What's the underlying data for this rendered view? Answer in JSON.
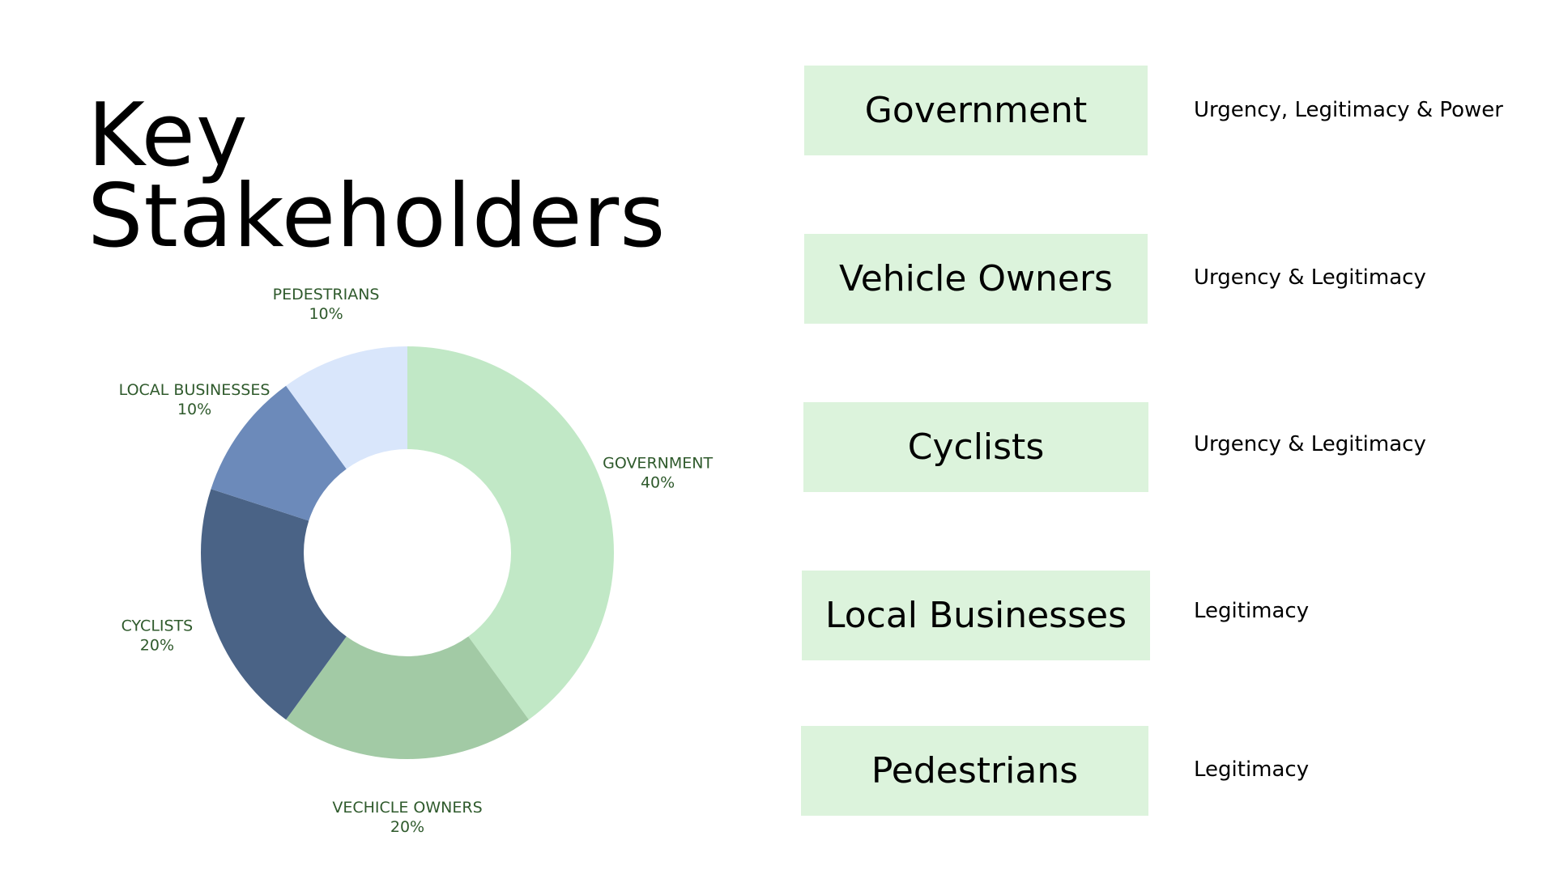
{
  "title": {
    "line1": "Key",
    "line2": "Stakeholders"
  },
  "chart_data": {
    "type": "pie",
    "style": "donut",
    "series": [
      {
        "name": "GOVERNMENT",
        "value": 40,
        "label": "40%",
        "color": "#c1e8c6"
      },
      {
        "name": "VECHICLE OWNERS",
        "value": 20,
        "label": "20%",
        "color": "#a2caa5"
      },
      {
        "name": "CYCLISTS",
        "value": 20,
        "label": "20%",
        "color": "#4a6386"
      },
      {
        "name": "LOCAL BUSINESSES",
        "value": 10,
        "label": "10%",
        "color": "#6c8aba"
      },
      {
        "name": "PEDESTRIANS",
        "value": 10,
        "label": "10%",
        "color": "#d9e6fb"
      }
    ]
  },
  "stakeholders": [
    {
      "name": "Government",
      "attributes": "Urgency, Legitimacy & Power"
    },
    {
      "name": "Vehicle Owners",
      "attributes": "Urgency & Legitimacy"
    },
    {
      "name": "Cyclists",
      "attributes": "Urgency & Legitimacy"
    },
    {
      "name": "Local Businesses",
      "attributes": "Legitimacy"
    },
    {
      "name": "Pedestrians",
      "attributes": "Legitimacy"
    }
  ],
  "colors": {
    "box_fill": "#dcf3dc",
    "label_text": "#2f5a2c"
  }
}
